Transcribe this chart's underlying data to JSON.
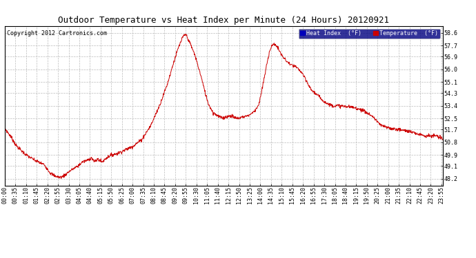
{
  "title": "Outdoor Temperature vs Heat Index per Minute (24 Hours) 20120921",
  "copyright": "Copyright 2012 Cartronics.com",
  "legend_heat_index": "Heat Index  (°F)",
  "legend_temperature": "Temperature  (°F)",
  "ylabel_ticks": [
    48.2,
    49.1,
    49.9,
    50.8,
    51.7,
    52.5,
    53.4,
    54.3,
    55.1,
    56.0,
    56.9,
    57.7,
    58.6
  ],
  "ymin": 47.7,
  "ymax": 59.1,
  "background_color": "#ffffff",
  "line_color": "#cc0000",
  "title_fontsize": 9,
  "tick_fontsize": 6,
  "total_minutes": 1440,
  "xtick_labels": [
    "00:00",
    "00:35",
    "01:10",
    "01:45",
    "02:20",
    "02:55",
    "03:30",
    "04:05",
    "04:40",
    "05:15",
    "05:50",
    "06:25",
    "07:00",
    "07:35",
    "08:10",
    "08:45",
    "09:20",
    "09:55",
    "10:30",
    "11:05",
    "11:40",
    "12:15",
    "12:50",
    "13:25",
    "14:00",
    "14:35",
    "15:10",
    "15:45",
    "16:20",
    "16:55",
    "17:30",
    "18:05",
    "18:40",
    "19:15",
    "19:50",
    "20:25",
    "21:00",
    "21:35",
    "22:10",
    "22:45",
    "23:20",
    "23:55"
  ],
  "xtick_positions": [
    0,
    35,
    70,
    105,
    140,
    175,
    210,
    245,
    280,
    315,
    350,
    385,
    420,
    455,
    490,
    525,
    560,
    595,
    630,
    665,
    700,
    735,
    770,
    805,
    840,
    875,
    910,
    945,
    980,
    1015,
    1050,
    1085,
    1120,
    1155,
    1190,
    1225,
    1260,
    1295,
    1330,
    1365,
    1400,
    1435
  ],
  "anchors": [
    [
      0,
      51.8
    ],
    [
      20,
      51.2
    ],
    [
      40,
      50.5
    ],
    [
      70,
      49.9
    ],
    [
      100,
      49.5
    ],
    [
      130,
      49.2
    ],
    [
      150,
      48.6
    ],
    [
      165,
      48.4
    ],
    [
      180,
      48.3
    ],
    [
      190,
      48.35
    ],
    [
      200,
      48.5
    ],
    [
      210,
      48.7
    ],
    [
      225,
      48.9
    ],
    [
      240,
      49.1
    ],
    [
      255,
      49.4
    ],
    [
      270,
      49.5
    ],
    [
      285,
      49.7
    ],
    [
      295,
      49.4
    ],
    [
      305,
      49.6
    ],
    [
      320,
      49.4
    ],
    [
      335,
      49.7
    ],
    [
      350,
      49.9
    ],
    [
      370,
      50.0
    ],
    [
      390,
      50.2
    ],
    [
      420,
      50.5
    ],
    [
      450,
      51.0
    ],
    [
      480,
      52.0
    ],
    [
      510,
      53.5
    ],
    [
      535,
      55.0
    ],
    [
      555,
      56.5
    ],
    [
      570,
      57.5
    ],
    [
      585,
      58.3
    ],
    [
      595,
      58.5
    ],
    [
      610,
      57.8
    ],
    [
      625,
      57.0
    ],
    [
      645,
      55.5
    ],
    [
      660,
      54.2
    ],
    [
      670,
      53.5
    ],
    [
      685,
      52.9
    ],
    [
      700,
      52.7
    ],
    [
      715,
      52.5
    ],
    [
      725,
      52.6
    ],
    [
      735,
      52.65
    ],
    [
      745,
      52.7
    ],
    [
      755,
      52.55
    ],
    [
      765,
      52.5
    ],
    [
      780,
      52.6
    ],
    [
      800,
      52.7
    ],
    [
      820,
      53.0
    ],
    [
      835,
      53.5
    ],
    [
      845,
      54.5
    ],
    [
      858,
      56.0
    ],
    [
      870,
      57.3
    ],
    [
      878,
      57.7
    ],
    [
      888,
      57.8
    ],
    [
      898,
      57.5
    ],
    [
      910,
      57.0
    ],
    [
      925,
      56.6
    ],
    [
      940,
      56.3
    ],
    [
      955,
      56.2
    ],
    [
      965,
      56.0
    ],
    [
      975,
      55.8
    ],
    [
      985,
      55.4
    ],
    [
      995,
      55.0
    ],
    [
      1005,
      54.6
    ],
    [
      1020,
      54.3
    ],
    [
      1035,
      54.0
    ],
    [
      1050,
      53.7
    ],
    [
      1065,
      53.5
    ],
    [
      1080,
      53.4
    ],
    [
      1100,
      53.4
    ],
    [
      1120,
      53.35
    ],
    [
      1140,
      53.3
    ],
    [
      1160,
      53.2
    ],
    [
      1175,
      53.1
    ],
    [
      1190,
      52.9
    ],
    [
      1205,
      52.7
    ],
    [
      1220,
      52.4
    ],
    [
      1235,
      52.0
    ],
    [
      1250,
      51.9
    ],
    [
      1265,
      51.8
    ],
    [
      1280,
      51.75
    ],
    [
      1295,
      51.7
    ],
    [
      1310,
      51.65
    ],
    [
      1325,
      51.6
    ],
    [
      1340,
      51.5
    ],
    [
      1355,
      51.4
    ],
    [
      1370,
      51.35
    ],
    [
      1385,
      51.25
    ],
    [
      1395,
      51.3
    ],
    [
      1405,
      51.2
    ],
    [
      1415,
      51.3
    ],
    [
      1425,
      51.15
    ],
    [
      1435,
      51.1
    ],
    [
      1439,
      51.05
    ]
  ]
}
